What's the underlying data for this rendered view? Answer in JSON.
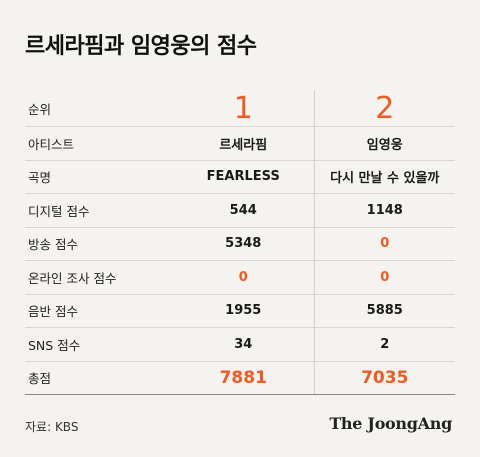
{
  "title": "르세라핌과 임영웅의 점수",
  "chart_data": {
    "type": "table",
    "columns": [
      "순위",
      "1",
      "2"
    ],
    "rows": [
      {
        "label": "아티스트",
        "values": [
          "르세라핌",
          "임영웅"
        ]
      },
      {
        "label": "곡명",
        "values": [
          "FEARLESS",
          "다시 만날 수 있을까"
        ]
      },
      {
        "label": "디지털 점수",
        "values": [
          "544",
          "1148"
        ]
      },
      {
        "label": "방송 점수",
        "values": [
          "5348",
          "0"
        ]
      },
      {
        "label": "온라인 조사 점수",
        "values": [
          "0",
          "0"
        ]
      },
      {
        "label": "음반 점수",
        "values": [
          "1955",
          "5885"
        ]
      },
      {
        "label": "SNS 점수",
        "values": [
          "34",
          "2"
        ]
      },
      {
        "label": "총점",
        "values": [
          "7881",
          "7035"
        ]
      }
    ]
  },
  "source": "자료: KBS",
  "logo": "The JoongAng",
  "colors": {
    "accent": "#f15a22",
    "background": "#f4f3ef"
  }
}
